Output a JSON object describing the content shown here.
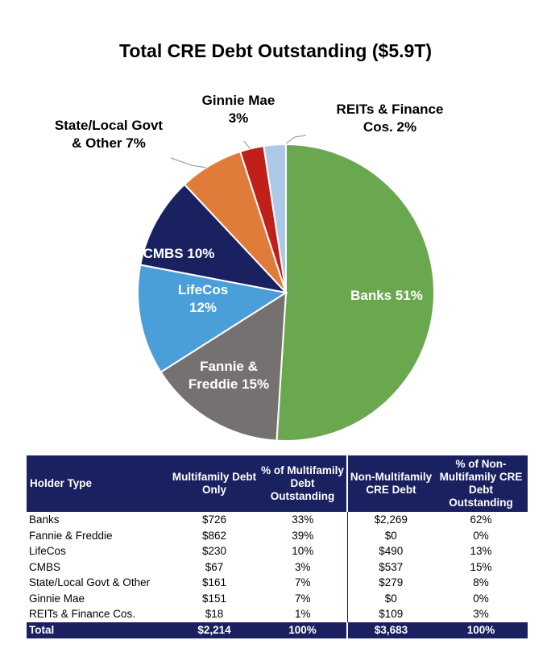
{
  "chart_data": {
    "type": "pie",
    "title": "Total CRE Debt Outstanding ($5.9T)",
    "slices": [
      {
        "name": "Banks",
        "pct_label": "51%",
        "value": 51,
        "color": "#6aa84f",
        "label_lines": [
          "Banks 51%"
        ],
        "label_color": "#ffffff"
      },
      {
        "name": "Fannie & Freddie",
        "pct_label": "15%",
        "value": 15,
        "color": "#767171",
        "label_lines": [
          "Fannie &",
          "Freddie 15%"
        ],
        "label_color": "#ffffff"
      },
      {
        "name": "LifeCos",
        "pct_label": "12%",
        "value": 12,
        "color": "#4a9fd8",
        "label_lines": [
          "LifeCos",
          "12%"
        ],
        "label_color": "#ffffff"
      },
      {
        "name": "CMBS",
        "pct_label": "10%",
        "value": 10,
        "color": "#1a2160",
        "label_lines": [
          "CMBS 10%"
        ],
        "label_color": "#ffffff"
      },
      {
        "name": "State/Local Govt & Other",
        "pct_label": "7%",
        "value": 7,
        "color": "#e07b39",
        "label_lines": [
          "State/Local Govt",
          "& Other 7%"
        ],
        "label_color": "#000000"
      },
      {
        "name": "Ginnie Mae",
        "pct_label": "3%",
        "value": 2.6,
        "color": "#c0201a",
        "label_lines": [
          "Ginnie Mae",
          "3%"
        ],
        "label_color": "#000000"
      },
      {
        "name": "REITs & Finance Cos.",
        "pct_label": "2%",
        "value": 2.4,
        "color": "#aec9e8",
        "label_lines": [
          "REITs & Finance",
          "Cos. 2%"
        ],
        "label_color": "#000000"
      }
    ]
  },
  "table": {
    "headers": [
      "Holder Type",
      "Multifamily Debt Only",
      "% of Multifamily Debt Outstanding",
      "Non-Multifamily CRE Debt",
      "% of Non-Multifamily CRE Debt Outstanding"
    ],
    "rows": [
      [
        "Banks",
        "$726",
        "33%",
        "$2,269",
        "62%"
      ],
      [
        "Fannie & Freddie",
        "$862",
        "39%",
        "$0",
        "0%"
      ],
      [
        "LifeCos",
        "$230",
        "10%",
        "$490",
        "13%"
      ],
      [
        "CMBS",
        "$67",
        "3%",
        "$537",
        "15%"
      ],
      [
        "State/Local Govt & Other",
        "$161",
        "7%",
        "$279",
        "8%"
      ],
      [
        "Ginnie Mae",
        "$151",
        "7%",
        "$0",
        "0%"
      ],
      [
        "REITs & Finance Cos.",
        "$18",
        "1%",
        "$109",
        "3%"
      ]
    ],
    "total": [
      "Total",
      "$2,214",
      "100%",
      "$3,683",
      "100%"
    ]
  }
}
